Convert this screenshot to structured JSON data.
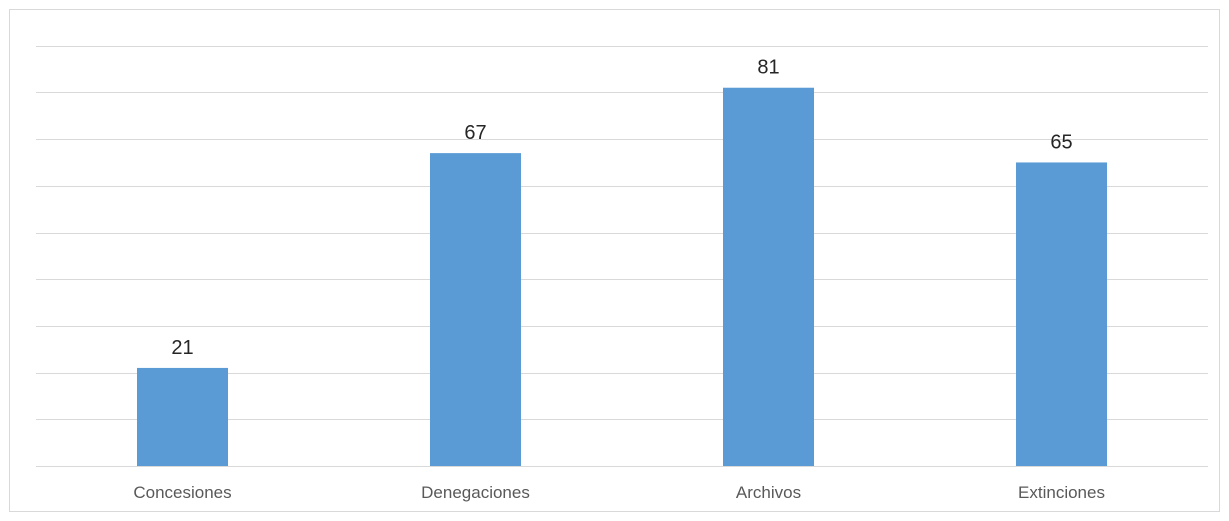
{
  "chart_data": {
    "type": "bar",
    "categories": [
      "Concesiones",
      "Denegaciones",
      "Archivos",
      "Extinciones"
    ],
    "values": [
      21,
      67,
      81,
      65
    ],
    "title": "",
    "xlabel": "",
    "ylabel": "",
    "ylim": [
      0,
      90
    ],
    "grid": true,
    "legend": "none",
    "data_labels": true,
    "colors": {
      "bar": "#5b9bd5",
      "gridline": "#d9d9d9",
      "label_text": "#262626",
      "tick_text": "#595959"
    }
  }
}
